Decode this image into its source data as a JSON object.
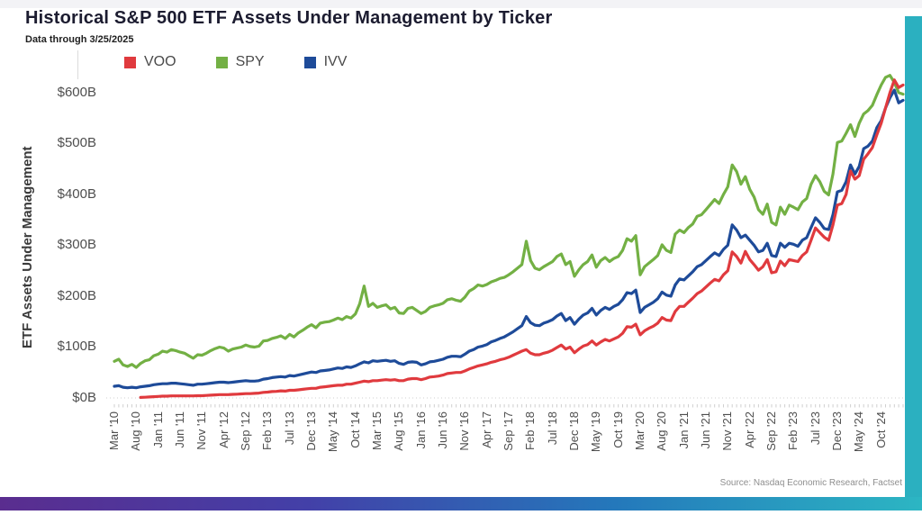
{
  "header": {
    "title": "Historical S&P 500 ETF Assets Under Management by Ticker",
    "subtitle": "Data through 3/25/2025"
  },
  "source": "Source: Nasdaq Economic Research, Factset",
  "colors": {
    "voo_red": "#e03a3e",
    "spy_green": "#73b044",
    "ivv_blue": "#1e4b99",
    "accent_band_teal": "#2bb0c0",
    "bottom_gradient": [
      "#5a2d8f",
      "#4340a8",
      "#2478bb",
      "#2cb6c3"
    ],
    "tick_gray": "#cfcfcf"
  },
  "chart_data": {
    "type": "line",
    "title": "Historical S&P 500 ETF Assets Under Management by Ticker",
    "xlabel": "",
    "ylabel": "ETF Assets Under Management",
    "ylim": [
      0,
      600
    ],
    "y_unit": "$B",
    "y_tick_labels": [
      "$0B",
      "$100B",
      "$200B",
      "$300B",
      "$400B",
      "$500B",
      "$600B"
    ],
    "y_tick_values": [
      0,
      100,
      200,
      300,
      400,
      500,
      600
    ],
    "grid": false,
    "legend_position": "top",
    "x_frequency": "monthly",
    "x_range": [
      "Mar 2010",
      "Mar 2025"
    ],
    "x_total_months": 180,
    "x_tick_interval_months": 5,
    "x_tick_labels": [
      "Mar '10",
      "Aug '10",
      "Jan '11",
      "Jun '11",
      "Nov '11",
      "Apr '12",
      "Sep '12",
      "Feb '13",
      "Jul '13",
      "Dec '13",
      "May '14",
      "Oct '14",
      "Mar '15",
      "Aug '15",
      "Jan '16",
      "Jun '16",
      "Nov '16",
      "Apr '17",
      "Sep '17",
      "Feb '18",
      "Jul '18",
      "Dec '18",
      "May '19",
      "Oct '19",
      "Mar '20",
      "Aug '20",
      "Jan '21",
      "Jun '21",
      "Nov '21",
      "Apr '22",
      "Sep '22",
      "Feb '23",
      "Jul '23",
      "Dec '23",
      "May '24",
      "Oct '24"
    ],
    "series": [
      {
        "name": "VOO",
        "color": "#e03a3e",
        "z": 3,
        "start_index": 6,
        "values": [
          1,
          1.5,
          2,
          2.5,
          3,
          3.5,
          3.5,
          4,
          4,
          4,
          4,
          4,
          4,
          4.5,
          4.5,
          5,
          5.5,
          6,
          6.5,
          6.5,
          6.5,
          7,
          7.5,
          8,
          8.5,
          8.5,
          9,
          9.5,
          11,
          11.5,
          12.5,
          13,
          14,
          13.5,
          15,
          15,
          16,
          17,
          18,
          19,
          19,
          21,
          22,
          23,
          24,
          25,
          25,
          27,
          27,
          29,
          31,
          33,
          32,
          34,
          34,
          35,
          36,
          35,
          36,
          34,
          34,
          37,
          38,
          38,
          36,
          38,
          41,
          42,
          43,
          45,
          48,
          49,
          50,
          50,
          53,
          57,
          60,
          63,
          65,
          67,
          70,
          72,
          75,
          77,
          80,
          84,
          88,
          92,
          95,
          88,
          85,
          85,
          88,
          90,
          94,
          99,
          104,
          96,
          100,
          89,
          96,
          102,
          105,
          112,
          104,
          110,
          115,
          112,
          116,
          120,
          127,
          140,
          139,
          145,
          124,
          132,
          137,
          141,
          147,
          158,
          153,
          152,
          170,
          180,
          180,
          188,
          196,
          205,
          210,
          218,
          226,
          233,
          230,
          242,
          250,
          287,
          278,
          265,
          288,
          272,
          262,
          251,
          258,
          272,
          246,
          248,
          269,
          260,
          272,
          270,
          268,
          280,
          287,
          310,
          334,
          325,
          316,
          310,
          340,
          379,
          382,
          400,
          446,
          430,
          437,
          469,
          480,
          492,
          517,
          540,
          570,
          600,
          625,
          610,
          615
        ]
      },
      {
        "name": "SPY",
        "color": "#73b044",
        "z": 1,
        "start_index": 0,
        "values": [
          72,
          76,
          65,
          62,
          66,
          60,
          68,
          73,
          75,
          83,
          86,
          92,
          90,
          95,
          93,
          90,
          88,
          83,
          78,
          85,
          84,
          88,
          93,
          97,
          100,
          98,
          92,
          96,
          98,
          100,
          104,
          101,
          100,
          102,
          112,
          113,
          117,
          119,
          122,
          117,
          125,
          120,
          128,
          133,
          139,
          144,
          138,
          147,
          149,
          150,
          153,
          157,
          154,
          160,
          157,
          165,
          185,
          220,
          180,
          186,
          178,
          181,
          183,
          175,
          178,
          167,
          166,
          176,
          178,
          172,
          166,
          170,
          178,
          181,
          183,
          186,
          193,
          195,
          192,
          190,
          198,
          210,
          215,
          222,
          220,
          223,
          228,
          231,
          235,
          237,
          242,
          248,
          255,
          262,
          308,
          270,
          255,
          252,
          258,
          263,
          268,
          278,
          283,
          262,
          268,
          239,
          252,
          262,
          268,
          281,
          257,
          270,
          276,
          268,
          274,
          278,
          290,
          313,
          308,
          319,
          242,
          258,
          265,
          272,
          280,
          301,
          290,
          286,
          322,
          330,
          325,
          335,
          342,
          357,
          360,
          370,
          380,
          390,
          382,
          400,
          415,
          458,
          445,
          420,
          435,
          410,
          395,
          370,
          361,
          381,
          345,
          340,
          375,
          361,
          379,
          375,
          370,
          385,
          392,
          420,
          437,
          425,
          406,
          399,
          440,
          502,
          505,
          520,
          537,
          514,
          540,
          558,
          565,
          575,
          596,
          615,
          630,
          634,
          620,
          600,
          597
        ]
      },
      {
        "name": "IVV",
        "color": "#1e4b99",
        "z": 2,
        "start_index": 0,
        "values": [
          23,
          24,
          21,
          20,
          21,
          20,
          22,
          23,
          24,
          26,
          27,
          28,
          28,
          29,
          29,
          28,
          27,
          26,
          25,
          27,
          27,
          28,
          29,
          30,
          31,
          31,
          30,
          31,
          32,
          33,
          34,
          33,
          33,
          34,
          37,
          38,
          40,
          41,
          42,
          41,
          44,
          43,
          45,
          47,
          49,
          51,
          50,
          53,
          54,
          55,
          57,
          59,
          58,
          61,
          60,
          63,
          67,
          71,
          69,
          73,
          72,
          73,
          74,
          72,
          73,
          68,
          66,
          70,
          71,
          70,
          65,
          67,
          71,
          72,
          74,
          76,
          80,
          82,
          82,
          81,
          86,
          92,
          95,
          100,
          102,
          105,
          110,
          113,
          117,
          120,
          125,
          130,
          136,
          142,
          160,
          148,
          143,
          142,
          147,
          150,
          154,
          161,
          166,
          152,
          158,
          145,
          155,
          163,
          167,
          176,
          163,
          172,
          178,
          174,
          180,
          184,
          193,
          207,
          205,
          212,
          168,
          178,
          183,
          188,
          195,
          208,
          202,
          200,
          222,
          234,
          232,
          240,
          248,
          258,
          262,
          270,
          278,
          285,
          280,
          292,
          300,
          340,
          330,
          315,
          320,
          310,
          300,
          287,
          290,
          304,
          280,
          278,
          304,
          296,
          304,
          302,
          298,
          310,
          315,
          335,
          354,
          345,
          333,
          331,
          360,
          405,
          408,
          425,
          458,
          440,
          455,
          490,
          495,
          505,
          531,
          545,
          570,
          590,
          605,
          580,
          585
        ]
      }
    ]
  }
}
